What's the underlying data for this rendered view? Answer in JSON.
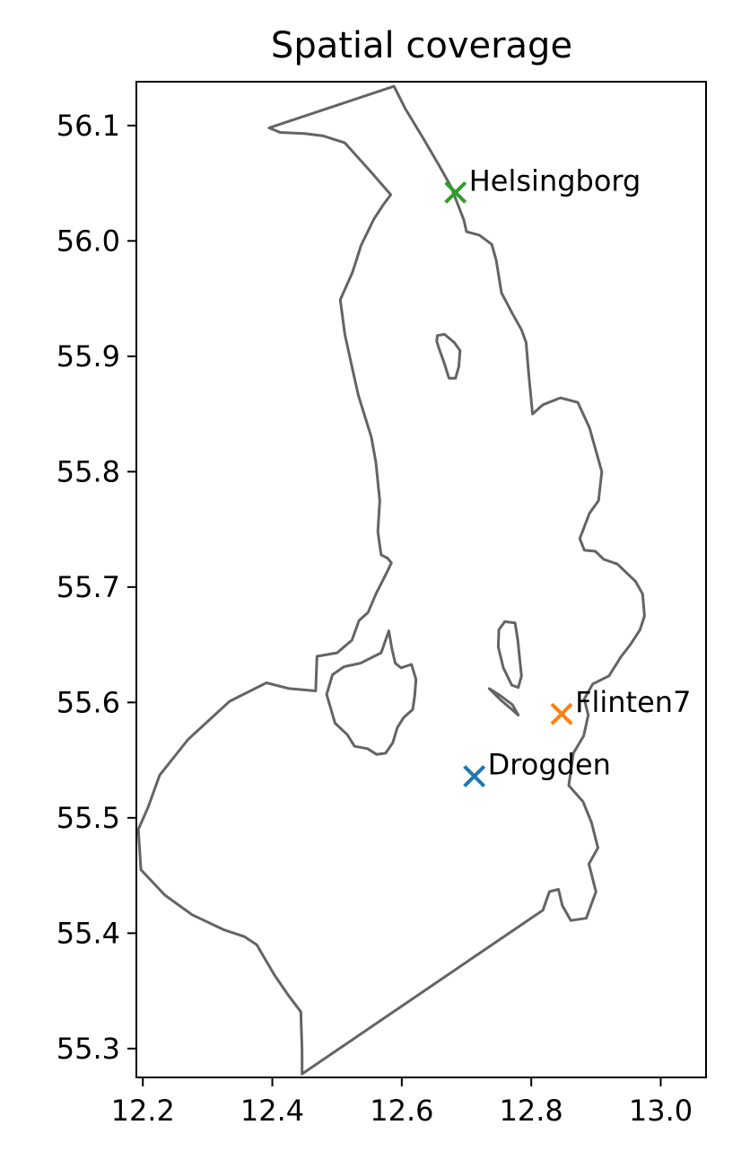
{
  "chart_data": {
    "type": "scatter",
    "title": "Spatial coverage",
    "xlabel": "",
    "ylabel": "",
    "xlim": [
      12.19,
      13.07
    ],
    "ylim": [
      55.275,
      56.138
    ],
    "grid": false,
    "x_ticks": [
      12.2,
      12.4,
      12.6,
      12.8,
      13.0
    ],
    "x_tick_labels": [
      "12.2",
      "12.4",
      "12.6",
      "12.8",
      "13.0"
    ],
    "y_ticks": [
      55.3,
      55.4,
      55.5,
      55.6,
      55.7,
      55.8,
      55.9,
      56.0,
      56.1
    ],
    "y_tick_labels": [
      "55.3",
      "55.4",
      "55.5",
      "55.6",
      "55.7",
      "55.8",
      "55.9",
      "56.0",
      "56.1"
    ],
    "series": [
      {
        "name": "Drogden",
        "x": 12.712,
        "y": 55.536,
        "color": "#1f77b4",
        "marker": "x"
      },
      {
        "name": "Flinten7",
        "x": 12.847,
        "y": 55.59,
        "color": "#ff7f0e",
        "marker": "x"
      },
      {
        "name": "Helsingborg",
        "x": 12.683,
        "y": 56.042,
        "color": "#2ca02c",
        "marker": "x"
      }
    ],
    "outline_color": "#646464",
    "domain_outlines": [
      {
        "name": "main-outline",
        "closed": true,
        "points": [
          [
            12.395,
            56.098
          ],
          [
            12.588,
            56.134
          ],
          [
            12.605,
            56.115
          ],
          [
            12.633,
            56.089
          ],
          [
            12.658,
            56.065
          ],
          [
            12.676,
            56.047
          ],
          [
            12.696,
            56.018
          ],
          [
            12.7,
            56.008
          ],
          [
            12.72,
            56.005
          ],
          [
            12.739,
            55.997
          ],
          [
            12.746,
            55.983
          ],
          [
            12.754,
            55.955
          ],
          [
            12.771,
            55.937
          ],
          [
            12.785,
            55.923
          ],
          [
            12.792,
            55.912
          ],
          [
            12.796,
            55.885
          ],
          [
            12.802,
            55.85
          ],
          [
            12.818,
            55.858
          ],
          [
            12.845,
            55.864
          ],
          [
            12.872,
            55.86
          ],
          [
            12.89,
            55.838
          ],
          [
            12.909,
            55.8
          ],
          [
            12.904,
            55.775
          ],
          [
            12.89,
            55.764
          ],
          [
            12.875,
            55.742
          ],
          [
            12.882,
            55.732
          ],
          [
            12.899,
            55.731
          ],
          [
            12.912,
            55.724
          ],
          [
            12.933,
            55.72
          ],
          [
            12.961,
            55.705
          ],
          [
            12.972,
            55.694
          ],
          [
            12.975,
            55.675
          ],
          [
            12.968,
            55.663
          ],
          [
            12.953,
            55.65
          ],
          [
            12.939,
            55.64
          ],
          [
            12.92,
            55.623
          ],
          [
            12.895,
            55.616
          ],
          [
            12.882,
            55.603
          ],
          [
            12.888,
            55.589
          ],
          [
            12.881,
            55.571
          ],
          [
            12.865,
            55.556
          ],
          [
            12.858,
            55.528
          ],
          [
            12.88,
            55.514
          ],
          [
            12.893,
            55.496
          ],
          [
            12.903,
            55.474
          ],
          [
            12.889,
            55.46
          ],
          [
            12.9,
            55.436
          ],
          [
            12.885,
            55.413
          ],
          [
            12.861,
            55.411
          ],
          [
            12.848,
            55.424
          ],
          [
            12.842,
            55.438
          ],
          [
            12.828,
            55.436
          ],
          [
            12.818,
            55.42
          ],
          [
            12.446,
            55.278
          ],
          [
            12.446,
            55.298
          ],
          [
            12.444,
            55.332
          ],
          [
            12.425,
            55.346
          ],
          [
            12.403,
            55.364
          ],
          [
            12.376,
            55.39
          ],
          [
            12.357,
            55.397
          ],
          [
            12.325,
            55.403
          ],
          [
            12.276,
            55.416
          ],
          [
            12.234,
            55.433
          ],
          [
            12.197,
            55.455
          ],
          [
            12.193,
            55.49
          ],
          [
            12.208,
            55.509
          ],
          [
            12.226,
            55.537
          ],
          [
            12.27,
            55.568
          ],
          [
            12.334,
            55.601
          ],
          [
            12.391,
            55.617
          ],
          [
            12.426,
            55.612
          ],
          [
            12.467,
            55.61
          ],
          [
            12.469,
            55.64
          ],
          [
            12.5,
            55.643
          ],
          [
            12.523,
            55.654
          ],
          [
            12.534,
            55.671
          ],
          [
            12.548,
            55.678
          ],
          [
            12.56,
            55.694
          ],
          [
            12.578,
            55.714
          ],
          [
            12.584,
            55.721
          ],
          [
            12.578,
            55.725
          ],
          [
            12.568,
            55.728
          ],
          [
            12.563,
            55.748
          ],
          [
            12.566,
            55.775
          ],
          [
            12.56,
            55.808
          ],
          [
            12.553,
            55.83
          ],
          [
            12.533,
            55.866
          ],
          [
            12.523,
            55.891
          ],
          [
            12.512,
            55.919
          ],
          [
            12.505,
            55.949
          ],
          [
            12.524,
            55.973
          ],
          [
            12.537,
            55.996
          ],
          [
            12.557,
            56.019
          ],
          [
            12.571,
            56.031
          ],
          [
            12.583,
            56.04
          ],
          [
            12.552,
            56.06
          ],
          [
            12.512,
            56.085
          ],
          [
            12.479,
            56.091
          ],
          [
            12.45,
            56.093
          ],
          [
            12.412,
            56.094
          ]
        ]
      },
      {
        "name": "island-ven",
        "closed": true,
        "points": [
          [
            12.655,
            55.918
          ],
          [
            12.666,
            55.919
          ],
          [
            12.681,
            55.912
          ],
          [
            12.69,
            55.905
          ],
          [
            12.688,
            55.891
          ],
          [
            12.683,
            55.881
          ],
          [
            12.673,
            55.881
          ],
          [
            12.665,
            55.895
          ],
          [
            12.658,
            55.906
          ],
          [
            12.654,
            55.913
          ]
        ]
      },
      {
        "name": "island-saltholm",
        "closed": true,
        "points": [
          [
            12.759,
            55.67
          ],
          [
            12.775,
            55.669
          ],
          [
            12.779,
            55.655
          ],
          [
            12.785,
            55.623
          ],
          [
            12.78,
            55.613
          ],
          [
            12.77,
            55.615
          ],
          [
            12.757,
            55.63
          ],
          [
            12.749,
            55.648
          ],
          [
            12.75,
            55.663
          ]
        ]
      },
      {
        "name": "island-amager",
        "closed": true,
        "points": [
          [
            12.536,
            55.634
          ],
          [
            12.568,
            55.643
          ],
          [
            12.58,
            55.662
          ],
          [
            12.585,
            55.646
          ],
          [
            12.59,
            55.634
          ],
          [
            12.599,
            55.63
          ],
          [
            12.615,
            55.633
          ],
          [
            12.622,
            55.62
          ],
          [
            12.62,
            55.606
          ],
          [
            12.617,
            55.594
          ],
          [
            12.603,
            55.587
          ],
          [
            12.593,
            55.578
          ],
          [
            12.586,
            55.565
          ],
          [
            12.575,
            55.556
          ],
          [
            12.561,
            55.555
          ],
          [
            12.547,
            55.56
          ],
          [
            12.527,
            55.562
          ],
          [
            12.516,
            55.572
          ],
          [
            12.497,
            55.582
          ],
          [
            12.484,
            55.607
          ],
          [
            12.493,
            55.624
          ],
          [
            12.511,
            55.631
          ]
        ]
      },
      {
        "name": "island-peberholm",
        "closed": true,
        "points": [
          [
            12.735,
            55.612
          ],
          [
            12.753,
            55.602
          ],
          [
            12.77,
            55.594
          ],
          [
            12.78,
            55.589
          ],
          [
            12.771,
            55.598
          ],
          [
            12.752,
            55.606
          ]
        ]
      }
    ]
  }
}
